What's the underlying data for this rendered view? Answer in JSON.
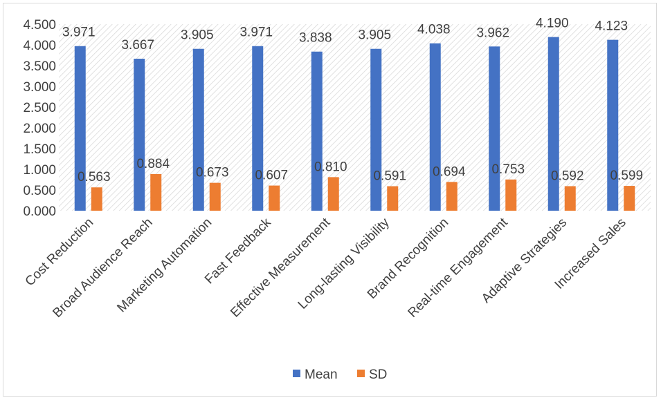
{
  "chart_data": {
    "type": "bar",
    "categories": [
      "Cost Reduction",
      "Broad Audience Reach",
      "Marketing Automation",
      "Fast Feedback",
      "Effective Measurement",
      "Long-lasting Visibility",
      "Brand Recognition",
      "Real-time Engagement",
      "Adaptive Strategies",
      "Increased Sales"
    ],
    "series": [
      {
        "name": "Mean",
        "color": "#4472C4",
        "values": [
          3.971,
          3.667,
          3.905,
          3.971,
          3.838,
          3.905,
          4.038,
          3.962,
          4.19,
          4.123
        ],
        "labels": [
          "3.971",
          "3.667",
          "3.905",
          "3.971",
          "3.838",
          "3.905",
          "4.038",
          "3.962",
          "4.190",
          "4.123"
        ]
      },
      {
        "name": "SD",
        "color": "#ED7D31",
        "values": [
          0.563,
          0.884,
          0.673,
          0.607,
          0.81,
          0.591,
          0.694,
          0.753,
          0.592,
          0.599
        ],
        "labels": [
          "0.563",
          "0.884",
          "0.673",
          "0.607",
          "0.810",
          "0.591",
          "0.694",
          "0.753",
          "0.592",
          "0.599"
        ]
      }
    ],
    "ylim": [
      0,
      4.5
    ],
    "yticks": [
      "0.000",
      "0.500",
      "1.000",
      "1.500",
      "2.000",
      "2.500",
      "3.000",
      "3.500",
      "4.000",
      "4.500"
    ],
    "title": "",
    "xlabel": "",
    "ylabel": "",
    "grid": false,
    "legend_position": "bottom",
    "plot_background": "diagonal hatch pattern"
  }
}
